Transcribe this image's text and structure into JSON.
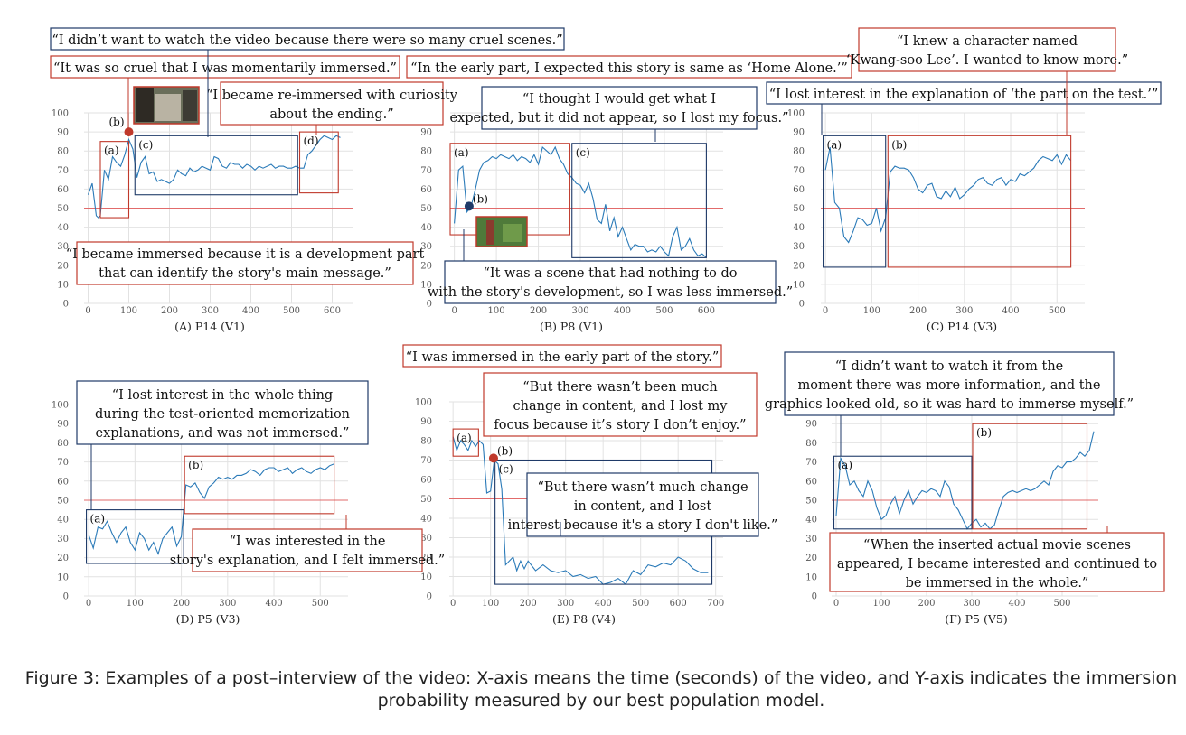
{
  "figure_caption": "Figure 3: Examples of a post–interview of the video: X-axis means the time (seconds) of the video, and Y-axis indicates the immersion probability measured by our best population model.",
  "colors": {
    "line": "#2a7ab8",
    "highlight_red": "#c0392b",
    "highlight_blue": "#1f3a68",
    "grid": "#e2e2e2",
    "threshold": "#e26b6b"
  },
  "chart_data": [
    {
      "type": "line",
      "title": "(A) P14 (V1)",
      "xticks": [
        0,
        100,
        200,
        300,
        400,
        500,
        600
      ],
      "yticks": [
        0,
        10,
        20,
        30,
        40,
        50,
        60,
        70,
        80,
        90,
        100
      ],
      "xlim": [
        -10,
        650
      ],
      "ylim": [
        0,
        100
      ],
      "threshold": 50,
      "x": [
        0,
        10,
        20,
        25,
        30,
        40,
        50,
        60,
        70,
        80,
        90,
        100,
        110,
        120,
        130,
        140,
        150,
        160,
        170,
        180,
        190,
        200,
        210,
        220,
        230,
        240,
        250,
        260,
        270,
        280,
        290,
        300,
        310,
        320,
        330,
        340,
        350,
        360,
        370,
        380,
        390,
        400,
        410,
        420,
        430,
        440,
        450,
        460,
        470,
        480,
        490,
        500,
        510,
        520,
        530,
        540,
        550,
        560,
        570,
        580,
        590,
        600,
        610,
        620
      ],
      "y": [
        57,
        63,
        46,
        45,
        46,
        70,
        65,
        77,
        74,
        72,
        78,
        86,
        81,
        66,
        74,
        77,
        68,
        69,
        64,
        65,
        64,
        63,
        65,
        70,
        68,
        67,
        71,
        69,
        70,
        72,
        71,
        70,
        77,
        76,
        72,
        71,
        74,
        73,
        73,
        71,
        73,
        72,
        70,
        72,
        71,
        72,
        73,
        71,
        72,
        72,
        71,
        71,
        72,
        71,
        71,
        78,
        80,
        83,
        86,
        88,
        87,
        86,
        88,
        87
      ],
      "markers": [
        {
          "label": "(b)",
          "x": 100,
          "y": 90,
          "color": "#c0392b"
        }
      ],
      "regions": [
        {
          "label": "(a)",
          "x": [
            30,
            100
          ],
          "y": [
            45,
            85
          ],
          "color": "#c0392b"
        },
        {
          "label": "(c)",
          "x": [
            115,
            515
          ],
          "y": [
            57,
            88
          ],
          "color": "#1f3a68"
        },
        {
          "label": "(d)",
          "x": [
            520,
            615
          ],
          "y": [
            58,
            90
          ],
          "color": "#c0392b"
        }
      ],
      "annotations": [
        "“I didn’t want to watch the video because there were so many cruel scenes.”",
        "“It was so cruel that I was momentarily immersed.”",
        "“I became re-immersed with curiosity about the ending.”",
        "“I became immersed because it is a development part that can identify the story's main message.”"
      ]
    },
    {
      "type": "line",
      "title": "(B) P8 (V1)",
      "xticks": [
        0,
        100,
        200,
        300,
        400,
        500,
        600
      ],
      "yticks": [
        0,
        10,
        20,
        30,
        40,
        50,
        60,
        70,
        80,
        90,
        100
      ],
      "xlim": [
        -10,
        640
      ],
      "ylim": [
        0,
        100
      ],
      "threshold": 50,
      "x": [
        0,
        10,
        20,
        30,
        40,
        50,
        60,
        70,
        80,
        90,
        100,
        110,
        120,
        130,
        140,
        150,
        160,
        170,
        180,
        190,
        200,
        210,
        220,
        230,
        240,
        250,
        260,
        270,
        280,
        290,
        300,
        310,
        320,
        330,
        340,
        350,
        360,
        370,
        380,
        390,
        400,
        410,
        420,
        430,
        440,
        450,
        460,
        470,
        480,
        490,
        500,
        510,
        520,
        530,
        540,
        550,
        560,
        570,
        580,
        590,
        600
      ],
      "y": [
        42,
        70,
        72,
        48,
        51,
        60,
        70,
        74,
        75,
        77,
        76,
        78,
        77,
        76,
        78,
        75,
        77,
        76,
        74,
        78,
        73,
        82,
        80,
        78,
        82,
        76,
        73,
        68,
        66,
        63,
        62,
        58,
        63,
        55,
        44,
        42,
        52,
        38,
        45,
        35,
        40,
        34,
        28,
        31,
        30,
        30,
        27,
        28,
        27,
        30,
        27,
        25,
        35,
        40,
        28,
        30,
        34,
        28,
        25,
        26,
        24
      ],
      "markers": [
        {
          "label": "(b)",
          "x": 35,
          "y": 51,
          "color": "#1f3a68"
        }
      ],
      "regions": [
        {
          "label": "(a)",
          "x": [
            -10,
            275
          ],
          "y": [
            36,
            84
          ],
          "color": "#c0392b"
        },
        {
          "label": "(c)",
          "x": [
            280,
            600
          ],
          "y": [
            24,
            84
          ],
          "color": "#1f3a68"
        }
      ],
      "annotations": [
        "“In the early part, I expected this story is same as ‘Home Alone.’”",
        "“I thought I would get what I expected, but it did not appear, so I lost my focus.”",
        "“It was a scene that had nothing to do with the story's development, so I was less immersed.”"
      ]
    },
    {
      "type": "line",
      "title": "(C) P14 (V3)",
      "xticks": [
        0,
        100,
        200,
        300,
        400,
        500
      ],
      "yticks": [
        0,
        10,
        20,
        30,
        40,
        50,
        60,
        70,
        80,
        90,
        100
      ],
      "xlim": [
        -10,
        560
      ],
      "ylim": [
        0,
        100
      ],
      "threshold": 50,
      "x": [
        0,
        10,
        20,
        30,
        40,
        50,
        60,
        70,
        80,
        90,
        100,
        110,
        120,
        130,
        140,
        150,
        160,
        170,
        180,
        190,
        200,
        210,
        220,
        230,
        240,
        250,
        260,
        270,
        280,
        290,
        300,
        310,
        320,
        330,
        340,
        350,
        360,
        370,
        380,
        390,
        400,
        410,
        420,
        430,
        440,
        450,
        460,
        470,
        480,
        490,
        500,
        510,
        520,
        530
      ],
      "y": [
        70,
        82,
        53,
        50,
        35,
        32,
        38,
        45,
        44,
        41,
        42,
        50,
        38,
        45,
        69,
        72,
        71,
        71,
        70,
        66,
        60,
        58,
        62,
        63,
        56,
        55,
        59,
        56,
        61,
        55,
        57,
        60,
        62,
        65,
        66,
        63,
        62,
        65,
        66,
        62,
        65,
        64,
        68,
        67,
        69,
        71,
        75,
        77,
        76,
        75,
        78,
        73,
        78,
        75
      ],
      "markers": [],
      "regions": [
        {
          "label": "(a)",
          "x": [
            -5,
            130
          ],
          "y": [
            19,
            88
          ],
          "color": "#1f3a68"
        },
        {
          "label": "(b)",
          "x": [
            135,
            530
          ],
          "y": [
            19,
            88
          ],
          "color": "#c0392b"
        }
      ],
      "annotations": [
        "“I knew a character named ‘Kwang-soo Lee’. I wanted to know more.”",
        "“I lost interest in the explanation of ‘the part on the test.’”"
      ]
    },
    {
      "type": "line",
      "title": "(D) P5 (V3)",
      "xticks": [
        0,
        100,
        200,
        300,
        400,
        500
      ],
      "yticks": [
        0,
        10,
        20,
        30,
        40,
        50,
        60,
        70,
        80,
        90,
        100
      ],
      "xlim": [
        -10,
        560
      ],
      "ylim": [
        0,
        100
      ],
      "threshold": 50,
      "x": [
        0,
        10,
        20,
        30,
        40,
        50,
        60,
        70,
        80,
        90,
        100,
        110,
        120,
        130,
        140,
        150,
        160,
        170,
        180,
        190,
        200,
        210,
        220,
        230,
        240,
        250,
        260,
        270,
        280,
        290,
        300,
        310,
        320,
        330,
        340,
        350,
        360,
        370,
        380,
        390,
        400,
        410,
        420,
        430,
        440,
        450,
        460,
        470,
        480,
        490,
        500,
        510,
        520,
        530
      ],
      "y": [
        32,
        25,
        36,
        35,
        39,
        33,
        28,
        33,
        36,
        28,
        24,
        33,
        30,
        24,
        28,
        22,
        30,
        33,
        36,
        26,
        31,
        58,
        57,
        59,
        54,
        51,
        57,
        59,
        62,
        61,
        62,
        61,
        63,
        63,
        64,
        66,
        65,
        63,
        66,
        67,
        67,
        65,
        66,
        67,
        64,
        66,
        67,
        65,
        64,
        66,
        67,
        66,
        68,
        69
      ],
      "markers": [],
      "regions": [
        {
          "label": "(a)",
          "x": [
            -5,
            205
          ],
          "y": [
            17,
            45
          ],
          "color": "#1f3a68"
        },
        {
          "label": "(b)",
          "x": [
            207,
            530
          ],
          "y": [
            43,
            73
          ],
          "color": "#c0392b"
        }
      ],
      "annotations": [
        "“I lost interest in the whole thing during the test-oriented memorization explanations, and was not immersed.”",
        "“I was interested in the story's explanation, and I felt immersed.”"
      ]
    },
    {
      "type": "line",
      "title": "(E) P8 (V4)",
      "xticks": [
        0,
        100,
        200,
        300,
        400,
        500,
        600,
        700
      ],
      "yticks": [
        0,
        10,
        20,
        30,
        40,
        50,
        60,
        70,
        80,
        90,
        100
      ],
      "xlim": [
        -10,
        720
      ],
      "ylim": [
        0,
        100
      ],
      "threshold": 50,
      "x": [
        0,
        10,
        20,
        30,
        40,
        50,
        60,
        70,
        80,
        90,
        100,
        110,
        120,
        130,
        140,
        150,
        160,
        170,
        180,
        190,
        200,
        220,
        240,
        260,
        280,
        300,
        320,
        340,
        360,
        380,
        400,
        420,
        440,
        460,
        480,
        500,
        520,
        540,
        560,
        580,
        600,
        620,
        640,
        660,
        680
      ],
      "y": [
        82,
        75,
        80,
        78,
        75,
        80,
        77,
        80,
        78,
        53,
        54,
        70,
        68,
        55,
        16,
        18,
        20,
        13,
        18,
        14,
        18,
        13,
        16,
        13,
        12,
        13,
        10,
        11,
        9,
        10,
        6,
        7,
        9,
        6,
        13,
        11,
        16,
        15,
        17,
        16,
        20,
        18,
        14,
        12,
        12
      ],
      "markers": [
        {
          "label": "(b)",
          "x": 108,
          "y": 71,
          "color": "#c0392b"
        }
      ],
      "regions": [
        {
          "label": "(a)",
          "x": [
            0,
            68
          ],
          "y": [
            72,
            86
          ],
          "color": "#c0392b"
        },
        {
          "label": "(c)",
          "x": [
            112,
            690
          ],
          "y": [
            6,
            70
          ],
          "color": "#1f3a68"
        }
      ],
      "annotations": [
        "“I was immersed in the early part of the story.”",
        "“But there wasn’t been much change in content, and I lost my focus because it’s story I don’t enjoy.”",
        "“But there wasn’t much change in content, and I lost interest because it's a story I don't like.”"
      ]
    },
    {
      "type": "line",
      "title": "(F) P5 (V5)",
      "xticks": [
        0,
        100,
        200,
        300,
        400,
        500
      ],
      "yticks": [
        0,
        10,
        20,
        30,
        40,
        50,
        60,
        70,
        80,
        90,
        100
      ],
      "xlim": [
        -10,
        580
      ],
      "ylim": [
        0,
        100
      ],
      "threshold": 50,
      "x": [
        0,
        10,
        20,
        30,
        40,
        50,
        60,
        70,
        80,
        90,
        100,
        110,
        120,
        130,
        140,
        150,
        160,
        170,
        180,
        190,
        200,
        210,
        220,
        230,
        240,
        250,
        260,
        270,
        280,
        290,
        300,
        310,
        320,
        330,
        340,
        350,
        360,
        370,
        380,
        390,
        400,
        410,
        420,
        430,
        440,
        450,
        460,
        470,
        480,
        490,
        500,
        510,
        520,
        530,
        540,
        550,
        560,
        570
      ],
      "y": [
        42,
        72,
        68,
        58,
        60,
        55,
        52,
        60,
        55,
        46,
        40,
        42,
        48,
        52,
        43,
        50,
        55,
        48,
        52,
        55,
        54,
        56,
        55,
        52,
        60,
        57,
        48,
        45,
        40,
        35,
        38,
        40,
        36,
        38,
        35,
        37,
        45,
        52,
        54,
        55,
        54,
        55,
        56,
        55,
        56,
        58,
        60,
        58,
        65,
        68,
        67,
        70,
        70,
        72,
        75,
        73,
        76,
        86
      ],
      "markers": [],
      "regions": [
        {
          "label": "(a)",
          "x": [
            -5,
            300
          ],
          "y": [
            35,
            73
          ],
          "color": "#1f3a68"
        },
        {
          "label": "(b)",
          "x": [
            302,
            555
          ],
          "y": [
            35,
            90
          ],
          "color": "#c0392b"
        }
      ],
      "annotations": [
        "“I didn’t want to watch it from the moment there was more information, and the graphics looked old, so it was hard to immerse myself.”",
        "“When the inserted actual movie scenes appeared, I became interested and continued to be immersed in the whole.”"
      ]
    }
  ]
}
